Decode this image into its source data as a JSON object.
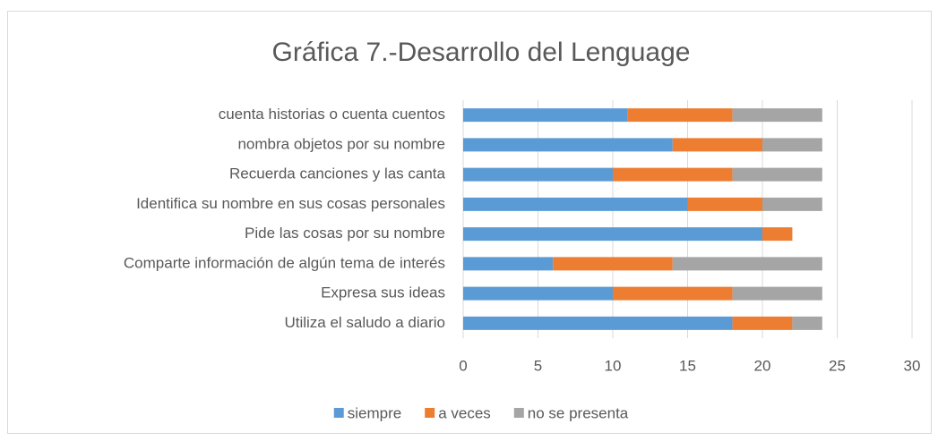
{
  "chart_data": {
    "type": "stacked-bar-horizontal",
    "title": "Gráfica 7.-Desarrollo del Lenguage",
    "categories": [
      "cuenta historias o cuenta cuentos",
      "nombra objetos por su nombre",
      "Recuerda canciones y las canta",
      "Identifica su nombre en sus cosas personales",
      "Pide las cosas por su nombre",
      "Comparte información de algún tema de interés",
      "Expresa sus ideas",
      "Utiliza el saludo a diario"
    ],
    "series": [
      {
        "name": "siempre",
        "color": "#5b9bd5",
        "values": [
          11,
          14,
          10,
          15,
          20,
          6,
          10,
          18
        ]
      },
      {
        "name": "a veces",
        "color": "#ed7d31",
        "values": [
          7,
          6,
          8,
          5,
          2,
          8,
          8,
          4
        ]
      },
      {
        "name": "no se presenta",
        "color": "#a5a5a5",
        "values": [
          6,
          4,
          6,
          4,
          0,
          10,
          6,
          2
        ]
      }
    ],
    "xlim": [
      0,
      30
    ],
    "xticks": [
      0,
      5,
      10,
      15,
      20,
      25,
      30
    ],
    "grid": true,
    "legend": "bottom"
  }
}
